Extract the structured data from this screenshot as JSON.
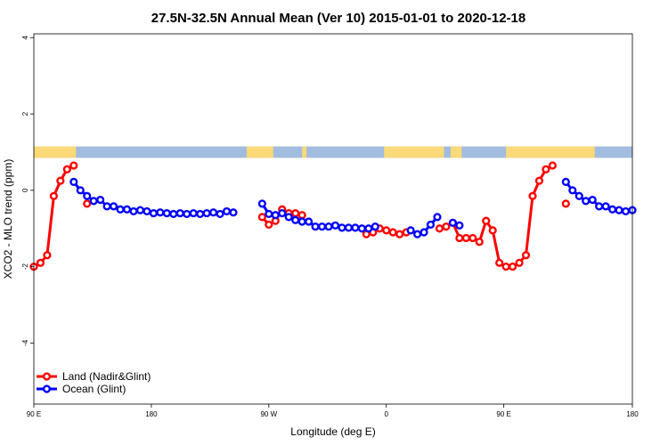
{
  "chart_data": {
    "type": "line",
    "title": "27.5N-32.5N Annual Mean (Ver 10)   2015-01-01 to 2020-12-18",
    "xlabel": "Longitude (deg E)",
    "ylabel": "XCO2 - MLO trend (ppm)",
    "xlim": [
      -90,
      180
    ],
    "ylim": [
      -5.6,
      4.1
    ],
    "x_ticks": [
      {
        "value": -90,
        "label": "90 E"
      },
      {
        "value": -37,
        "label": "180"
      },
      {
        "value": 16,
        "label": "90 W"
      },
      {
        "value": 69,
        "label": "0"
      },
      {
        "value": 122,
        "label": "90 E"
      },
      {
        "value": 180,
        "label": "180"
      }
    ],
    "y_ticks": [
      {
        "value": 4,
        "label": "4"
      },
      {
        "value": 2,
        "label": "2"
      },
      {
        "value": 0,
        "label": "0"
      },
      {
        "value": -2,
        "label": "-2"
      },
      {
        "value": -4,
        "label": "-4"
      }
    ],
    "legend": "bottom-left",
    "series": [
      {
        "name": "Land (Nadir&Glint)",
        "color": "#ff0000",
        "segments": [
          [
            [
              -90,
              -2.0
            ],
            [
              -87,
              -1.9
            ],
            [
              -84,
              -1.7
            ],
            [
              -81,
              -0.15
            ],
            [
              -78,
              0.25
            ],
            [
              -75,
              0.55
            ],
            [
              -72,
              0.65
            ]
          ],
          [
            [
              -66,
              -0.35
            ]
          ],
          [
            [
              13,
              -0.7
            ],
            [
              16,
              -0.9
            ],
            [
              19,
              -0.8
            ],
            [
              22,
              -0.5
            ],
            [
              25,
              -0.6
            ],
            [
              28,
              -0.6
            ],
            [
              31,
              -0.65
            ]
          ],
          [
            [
              60,
              -1.15
            ],
            [
              63,
              -1.1
            ],
            [
              66,
              -1.0
            ],
            [
              69,
              -1.05
            ],
            [
              72,
              -1.1
            ],
            [
              75,
              -1.15
            ],
            [
              78,
              -1.1
            ]
          ],
          [
            [
              93,
              -1.0
            ],
            [
              96,
              -0.95
            ],
            [
              99,
              -0.85
            ],
            [
              102,
              -1.25
            ],
            [
              105,
              -1.25
            ],
            [
              108,
              -1.25
            ],
            [
              111,
              -1.35
            ],
            [
              114,
              -0.8
            ],
            [
              117,
              -1.05
            ],
            [
              120,
              -1.9
            ],
            [
              123,
              -2.0
            ],
            [
              126,
              -2.0
            ],
            [
              129,
              -1.9
            ],
            [
              132,
              -1.7
            ],
            [
              135,
              -0.15
            ],
            [
              138,
              0.25
            ],
            [
              141,
              0.55
            ],
            [
              144,
              0.65
            ]
          ],
          [
            [
              150,
              -0.35
            ]
          ]
        ]
      },
      {
        "name": "Ocean (Glint)",
        "color": "#0000ff",
        "segments": [
          [
            [
              -72,
              0.22
            ],
            [
              -69,
              0.0
            ],
            [
              -66,
              -0.15
            ],
            [
              -63,
              -0.28
            ],
            [
              -60,
              -0.25
            ],
            [
              -57,
              -0.42
            ],
            [
              -54,
              -0.42
            ],
            [
              -51,
              -0.5
            ],
            [
              -48,
              -0.5
            ],
            [
              -45,
              -0.55
            ],
            [
              -42,
              -0.52
            ],
            [
              -39,
              -0.55
            ],
            [
              -36,
              -0.6
            ],
            [
              -33,
              -0.58
            ],
            [
              -30,
              -0.6
            ],
            [
              -27,
              -0.62
            ],
            [
              -24,
              -0.6
            ],
            [
              -21,
              -0.62
            ],
            [
              -18,
              -0.6
            ],
            [
              -15,
              -0.62
            ],
            [
              -12,
              -0.6
            ],
            [
              -9,
              -0.58
            ],
            [
              -6,
              -0.62
            ],
            [
              -3,
              -0.55
            ],
            [
              0,
              -0.58
            ]
          ],
          [
            [
              13,
              -0.35
            ],
            [
              16,
              -0.62
            ],
            [
              19,
              -0.65
            ],
            [
              22,
              -0.6
            ],
            [
              25,
              -0.7
            ],
            [
              28,
              -0.78
            ],
            [
              31,
              -0.82
            ],
            [
              34,
              -0.82
            ],
            [
              37,
              -0.95
            ],
            [
              40,
              -0.95
            ],
            [
              43,
              -0.95
            ],
            [
              46,
              -0.92
            ],
            [
              49,
              -0.98
            ],
            [
              52,
              -0.98
            ],
            [
              55,
              -0.98
            ],
            [
              58,
              -1.0
            ],
            [
              61,
              -1.0
            ],
            [
              64,
              -0.95
            ]
          ],
          [
            [
              80,
              -1.05
            ],
            [
              83,
              -1.15
            ],
            [
              86,
              -1.1
            ],
            [
              89,
              -0.9
            ],
            [
              92,
              -0.7
            ]
          ],
          [
            [
              99,
              -0.85
            ],
            [
              102,
              -0.92
            ]
          ],
          [
            [
              150,
              0.22
            ],
            [
              153,
              0.0
            ],
            [
              156,
              -0.15
            ],
            [
              159,
              -0.28
            ],
            [
              162,
              -0.25
            ],
            [
              165,
              -0.42
            ],
            [
              168,
              -0.42
            ],
            [
              171,
              -0.5
            ],
            [
              174,
              -0.52
            ],
            [
              177,
              -0.55
            ],
            [
              180,
              -0.52
            ]
          ]
        ]
      }
    ],
    "landmask_band": {
      "y_range": [
        0.85,
        1.15
      ],
      "ocean_color": "#a1bcdf",
      "land_color": "#f9d978",
      "land_x_ranges": [
        [
          -90,
          -71
        ],
        [
          6,
          18
        ],
        [
          31,
          33
        ],
        [
          68,
          95
        ],
        [
          98,
          103
        ],
        [
          123,
          163
        ]
      ]
    }
  }
}
